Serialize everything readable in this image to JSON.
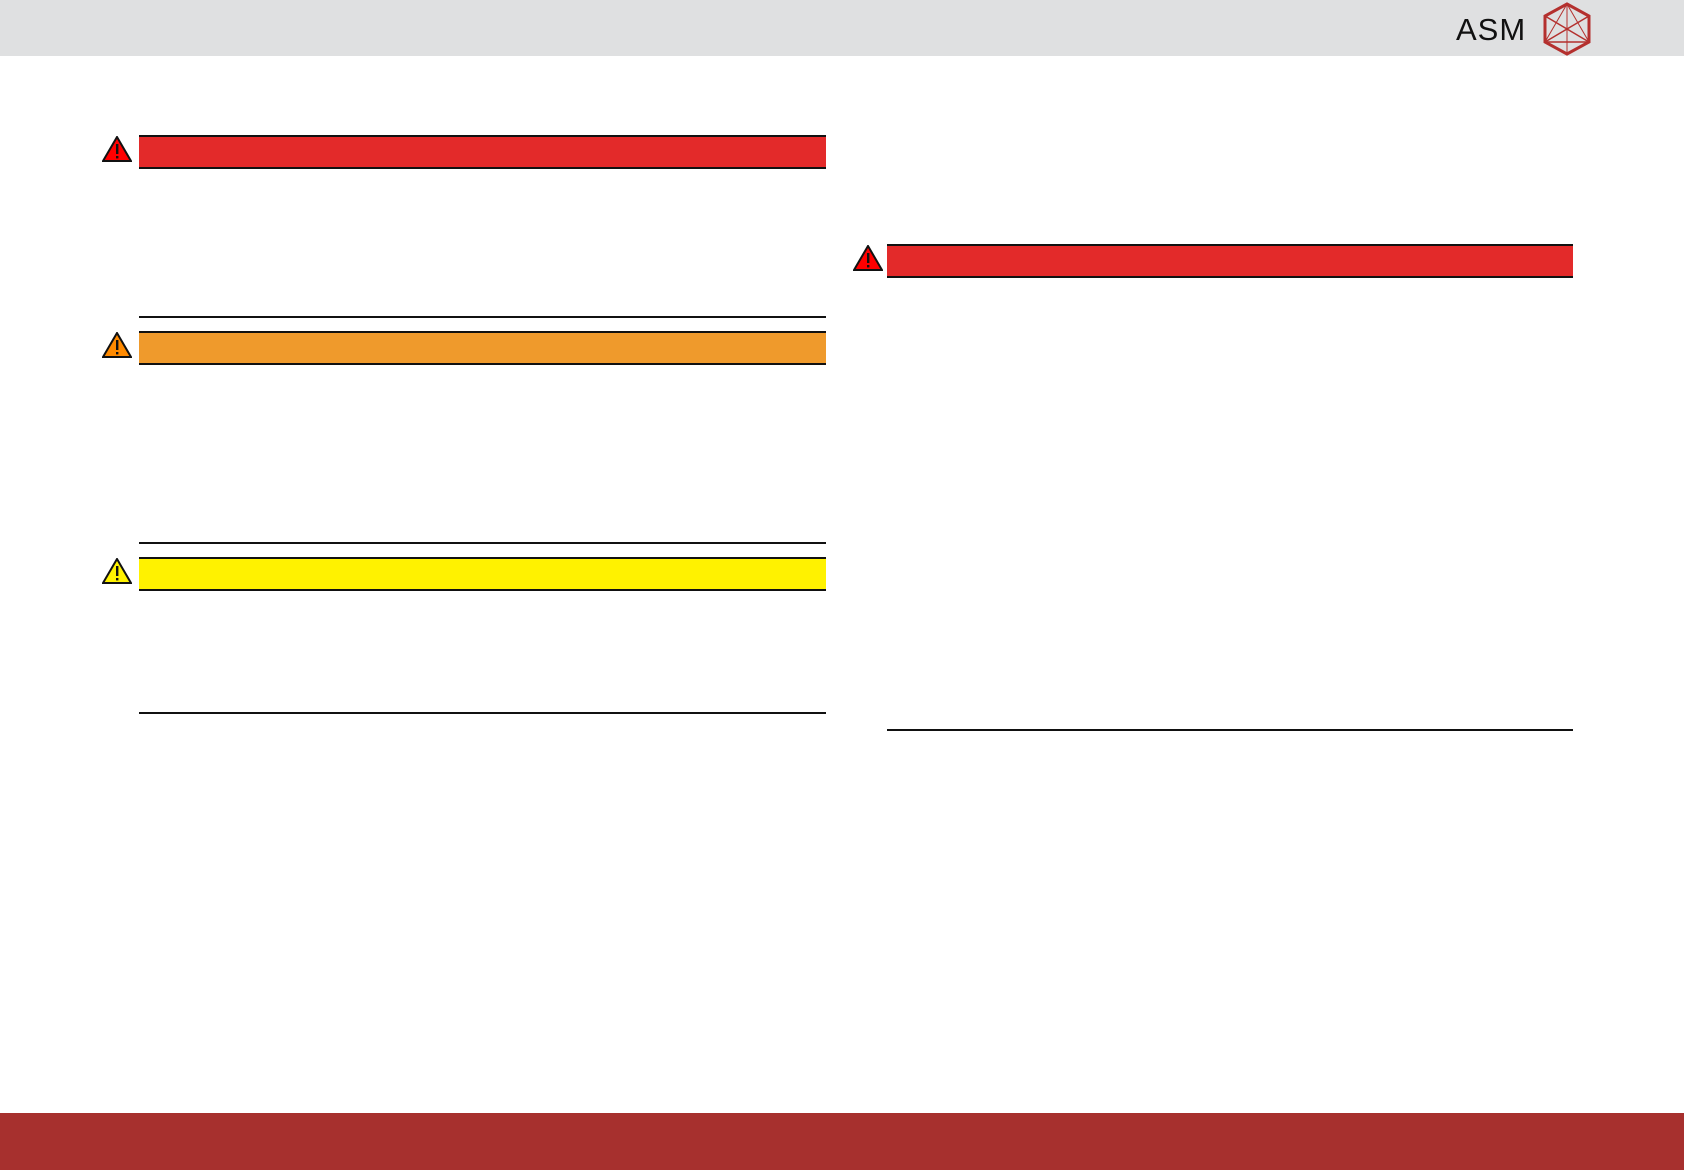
{
  "header": {
    "logo_text": "ASM",
    "background": "#dfe0e1",
    "logo_mark_color": "#b4302e"
  },
  "footer": {
    "background": "#a7302e"
  },
  "notices": [
    {
      "level": "danger",
      "color": "#e32a2a",
      "icon": "warning-triangle-red-icon"
    },
    {
      "level": "warning",
      "color": "#ef9a2c",
      "icon": "warning-triangle-orange-icon"
    },
    {
      "level": "caution",
      "color": "#fff200",
      "icon": "warning-triangle-yellow-icon"
    },
    {
      "level": "danger",
      "color": "#e32a2a",
      "icon": "warning-triangle-red-icon"
    }
  ]
}
